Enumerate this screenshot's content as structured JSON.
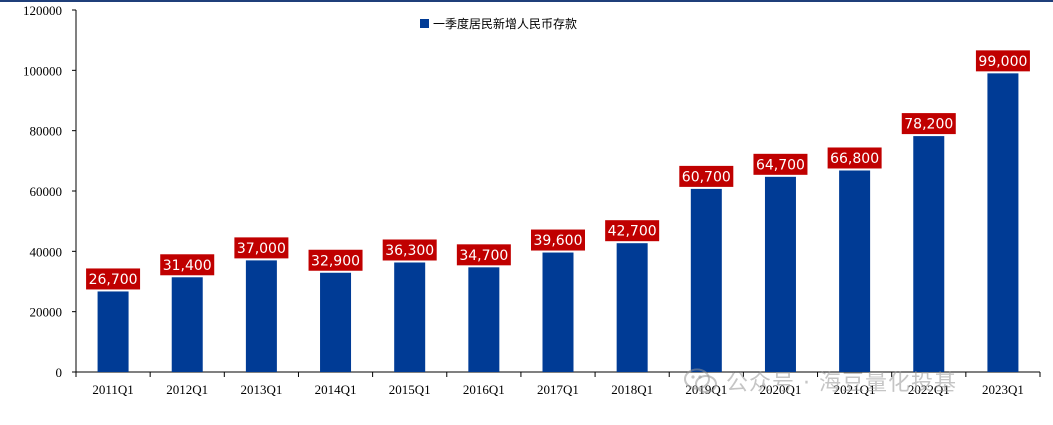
{
  "chart_data": {
    "type": "bar",
    "categories": [
      "2011Q1",
      "2012Q1",
      "2013Q1",
      "2014Q1",
      "2015Q1",
      "2016Q1",
      "2017Q1",
      "2018Q1",
      "2019Q1",
      "2020Q1",
      "2021Q1",
      "2022Q1",
      "2023Q1"
    ],
    "series": [
      {
        "name": "一季度居民新增人民币存款",
        "values": [
          26700,
          31400,
          37000,
          32900,
          36300,
          34700,
          39600,
          42700,
          60700,
          64700,
          66800,
          78200,
          99000
        ],
        "data_labels": [
          "26,700",
          "31,400",
          "37,000",
          "32,900",
          "36,300",
          "34,700",
          "39,600",
          "42,700",
          "60,700",
          "64,700",
          "66,800",
          "78,200",
          "99,000"
        ]
      }
    ],
    "yticks": [
      "0",
      "20000",
      "40000",
      "60000",
      "80000",
      "100000",
      "120000"
    ],
    "ylim": [
      0,
      120000
    ],
    "grid": false,
    "legend_position": "top-center",
    "colors": {
      "bar": "#003b95",
      "label_bg": "#c00000",
      "label_text": "#ffffff",
      "axis": "#000000"
    }
  },
  "watermark": {
    "text": "公众号 · 海豆量化投基",
    "icon": "wechat-icon"
  }
}
